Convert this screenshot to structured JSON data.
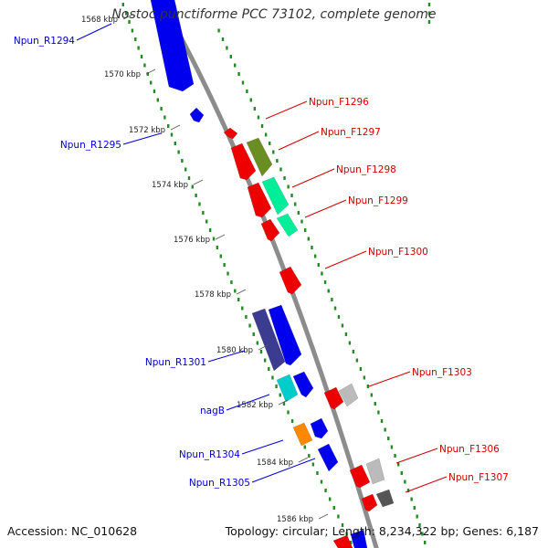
{
  "title": "Nostoc punctiforme PCC 73102, complete genome",
  "footer": {
    "accession": "Accession: NC_010628",
    "topology": "Topology: circular; Length: 8,234,322 bp; Genes: 6,187"
  },
  "colors": {
    "backbone": "#8c8c8c",
    "tick_track": "#228b22",
    "reverse_label": "#0000cc",
    "forward_label": "#cc0000"
  },
  "ticks": [
    {
      "label": "1568 kbp"
    },
    {
      "label": "1570 kbp"
    },
    {
      "label": "1572 kbp"
    },
    {
      "label": "1574 kbp"
    },
    {
      "label": "1576 kbp"
    },
    {
      "label": "1578 kbp"
    },
    {
      "label": "1580 kbp"
    },
    {
      "label": "1582 kbp"
    },
    {
      "label": "1584 kbp"
    },
    {
      "label": "1586 kbp"
    }
  ],
  "gene_labels": {
    "reverse": [
      "Npun_R1294",
      "Npun_R1295",
      "Npun_R1301",
      "nagB",
      "Npun_R1304",
      "Npun_R1305"
    ],
    "forward": [
      "Npun_F1296",
      "Npun_F1297",
      "Npun_F1298",
      "Npun_F1299",
      "Npun_F1300",
      "Npun_F1303",
      "Npun_F1306",
      "Npun_F1307"
    ]
  },
  "gene_colors": [
    "blue",
    "red",
    "olive",
    "aquamarine",
    "slate-blue",
    "cyan",
    "orange",
    "light-grey",
    "dark-grey"
  ]
}
